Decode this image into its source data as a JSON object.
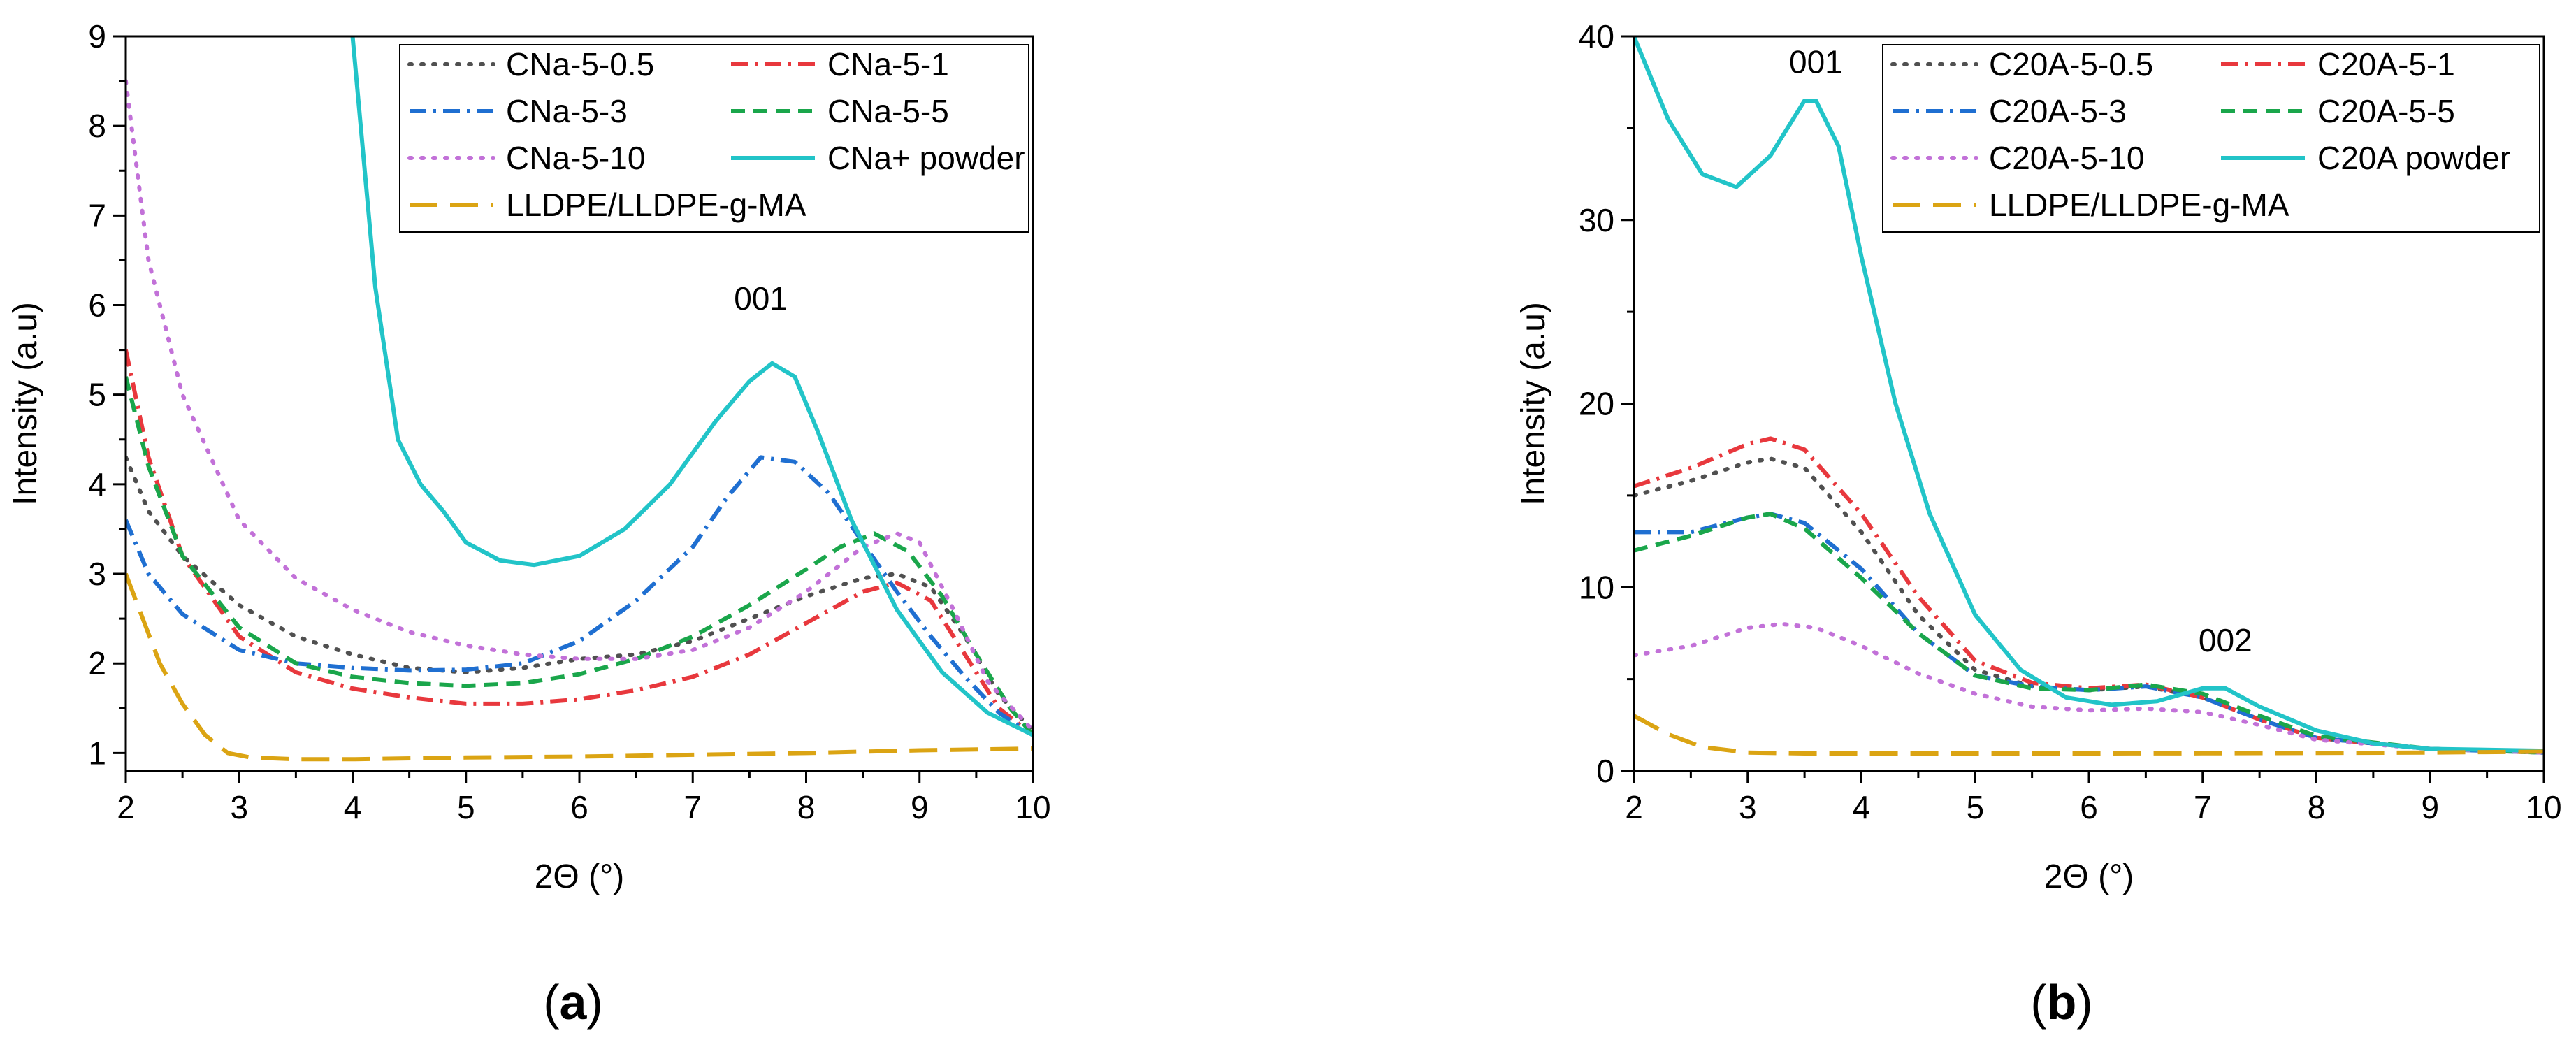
{
  "chart_data": [
    {
      "type": "line",
      "panel_label": "(a)",
      "caption": {
        "open": "(",
        "letter": "a",
        "close": ")"
      },
      "xlabel": "2Θ (°)",
      "ylabel": "Intensity (a.u)",
      "xlim": [
        2,
        10
      ],
      "ylim": [
        0.8,
        9
      ],
      "xticks": [
        2,
        3,
        4,
        5,
        6,
        7,
        8,
        9,
        10
      ],
      "yticks": [
        1,
        2,
        3,
        4,
        5,
        6,
        7,
        8,
        9
      ],
      "legend_position": "top-right",
      "annotations": [
        {
          "text": "001",
          "x": 7.6,
          "y": 5.95
        }
      ],
      "series": [
        {
          "name": "CNa-5-0.5",
          "color": "#505050",
          "style": "dot",
          "x": [
            2,
            2.2,
            2.5,
            3,
            3.5,
            4,
            4.5,
            5,
            5.5,
            6,
            6.5,
            7,
            7.5,
            8,
            8.5,
            8.8,
            9.1,
            9.4,
            9.7,
            10
          ],
          "y": [
            4.3,
            3.7,
            3.2,
            2.65,
            2.3,
            2.1,
            1.95,
            1.9,
            1.95,
            2.05,
            2.1,
            2.25,
            2.5,
            2.75,
            2.95,
            3.0,
            2.85,
            2.3,
            1.65,
            1.25
          ]
        },
        {
          "name": "CNa-5-1",
          "color": "#e8383d",
          "style": "dashdot",
          "x": [
            2,
            2.2,
            2.5,
            3,
            3.5,
            4,
            4.5,
            5,
            5.5,
            6,
            6.5,
            7,
            7.5,
            8,
            8.5,
            8.8,
            9.1,
            9.4,
            9.7,
            10
          ],
          "y": [
            5.5,
            4.3,
            3.2,
            2.3,
            1.9,
            1.72,
            1.62,
            1.55,
            1.55,
            1.6,
            1.7,
            1.85,
            2.1,
            2.45,
            2.8,
            2.9,
            2.7,
            2.1,
            1.5,
            1.2
          ]
        },
        {
          "name": "CNa-5-3",
          "color": "#1f6fd1",
          "style": "dashdot",
          "x": [
            2,
            2.2,
            2.5,
            3,
            3.5,
            4,
            4.5,
            5,
            5.5,
            6,
            6.5,
            7,
            7.3,
            7.6,
            7.9,
            8.2,
            8.5,
            8.8,
            9.1,
            9.4,
            9.7,
            10
          ],
          "y": [
            3.6,
            3.0,
            2.55,
            2.15,
            2.0,
            1.95,
            1.92,
            1.93,
            2.0,
            2.25,
            2.7,
            3.3,
            3.85,
            4.3,
            4.25,
            3.9,
            3.35,
            2.8,
            2.3,
            1.85,
            1.45,
            1.2
          ]
        },
        {
          "name": "CNa-5-5",
          "color": "#1aa64b",
          "style": "dash",
          "x": [
            2,
            2.2,
            2.5,
            3,
            3.5,
            4,
            4.5,
            5,
            5.5,
            6,
            6.5,
            7,
            7.5,
            8,
            8.3,
            8.6,
            8.9,
            9.2,
            9.5,
            9.8,
            10
          ],
          "y": [
            5.2,
            4.2,
            3.2,
            2.4,
            2.0,
            1.85,
            1.78,
            1.75,
            1.78,
            1.88,
            2.05,
            2.3,
            2.65,
            3.05,
            3.3,
            3.45,
            3.25,
            2.75,
            2.1,
            1.5,
            1.2
          ]
        },
        {
          "name": "CNa-5-10",
          "color": "#c271d8",
          "style": "dot",
          "x": [
            2,
            2.2,
            2.5,
            3,
            3.5,
            4,
            4.5,
            5,
            5.5,
            6,
            6.5,
            7,
            7.5,
            8,
            8.5,
            8.8,
            9.0,
            9.3,
            9.6,
            10
          ],
          "y": [
            8.5,
            6.5,
            5.0,
            3.6,
            2.95,
            2.6,
            2.35,
            2.2,
            2.1,
            2.05,
            2.05,
            2.15,
            2.4,
            2.8,
            3.3,
            3.45,
            3.35,
            2.6,
            1.8,
            1.25
          ]
        },
        {
          "name": "CNa+ powder",
          "color": "#22c4c8",
          "style": "solid",
          "x": [
            4.0,
            4.2,
            4.4,
            4.6,
            4.8,
            5.0,
            5.3,
            5.6,
            6.0,
            6.4,
            6.8,
            7.2,
            7.5,
            7.7,
            7.9,
            8.1,
            8.4,
            8.8,
            9.2,
            9.6,
            10.0
          ],
          "y": [
            9.0,
            6.2,
            4.5,
            4.0,
            3.7,
            3.35,
            3.15,
            3.1,
            3.2,
            3.5,
            4.0,
            4.7,
            5.15,
            5.35,
            5.2,
            4.6,
            3.6,
            2.6,
            1.9,
            1.45,
            1.2
          ]
        },
        {
          "name": "LLDPE/LLDPE-g-MA",
          "color": "#dba413",
          "style": "longdash",
          "x": [
            2,
            2.15,
            2.3,
            2.5,
            2.7,
            2.9,
            3.1,
            3.5,
            4,
            5,
            6,
            7,
            8,
            9,
            10
          ],
          "y": [
            3.0,
            2.5,
            2.0,
            1.55,
            1.2,
            1.0,
            0.95,
            0.93,
            0.93,
            0.95,
            0.96,
            0.98,
            1.0,
            1.03,
            1.05
          ]
        }
      ]
    },
    {
      "type": "line",
      "panel_label": "(b)",
      "caption": {
        "open": "(",
        "letter": "b",
        "close": ")"
      },
      "xlabel": "2Θ (°)",
      "ylabel": "Intensity (a.u)",
      "xlim": [
        2,
        10
      ],
      "ylim": [
        0,
        40
      ],
      "xticks": [
        2,
        3,
        4,
        5,
        6,
        7,
        8,
        9,
        10
      ],
      "yticks": [
        0,
        10,
        20,
        30,
        40
      ],
      "legend_position": "top-right",
      "annotations": [
        {
          "text": "001",
          "x": 3.6,
          "y": 38
        },
        {
          "text": "002",
          "x": 7.2,
          "y": 6.5
        }
      ],
      "series": [
        {
          "name": "C20A-5-0.5",
          "color": "#505050",
          "style": "dot",
          "x": [
            2,
            2.5,
            3,
            3.2,
            3.5,
            4,
            4.5,
            5,
            5.5,
            6,
            6.5,
            7,
            7.5,
            8,
            9,
            10
          ],
          "y": [
            15.0,
            15.8,
            16.8,
            17.0,
            16.5,
            13.0,
            8.5,
            5.5,
            4.6,
            4.4,
            4.6,
            4.0,
            2.8,
            1.8,
            1.2,
            1.0
          ]
        },
        {
          "name": "C20A-5-1",
          "color": "#e8383d",
          "style": "dashdot",
          "x": [
            2,
            2.5,
            3,
            3.2,
            3.5,
            4,
            4.5,
            5,
            5.5,
            6,
            6.5,
            7,
            7.5,
            8,
            9,
            10
          ],
          "y": [
            15.5,
            16.5,
            17.8,
            18.1,
            17.5,
            14.0,
            9.5,
            6.0,
            4.8,
            4.5,
            4.7,
            4.0,
            2.8,
            1.8,
            1.2,
            1.0
          ]
        },
        {
          "name": "C20A-5-3",
          "color": "#1f6fd1",
          "style": "dashdot",
          "x": [
            2,
            2.5,
            3,
            3.2,
            3.5,
            4,
            4.5,
            5,
            5.5,
            6,
            6.5,
            7,
            7.5,
            8,
            9,
            10
          ],
          "y": [
            13.0,
            13.0,
            13.8,
            14.0,
            13.5,
            11.0,
            7.5,
            5.2,
            4.6,
            4.4,
            4.6,
            4.0,
            2.8,
            1.8,
            1.2,
            1.0
          ]
        },
        {
          "name": "C20A-5-5",
          "color": "#1aa64b",
          "style": "dash",
          "x": [
            2,
            2.5,
            3,
            3.2,
            3.5,
            4,
            4.5,
            5,
            5.5,
            6,
            6.5,
            7,
            7.5,
            8,
            9,
            10
          ],
          "y": [
            12.0,
            12.8,
            13.8,
            14.0,
            13.2,
            10.5,
            7.5,
            5.2,
            4.5,
            4.4,
            4.7,
            4.2,
            3.0,
            1.9,
            1.2,
            1.0
          ]
        },
        {
          "name": "C20A-5-10",
          "color": "#c271d8",
          "style": "dot",
          "x": [
            2,
            2.5,
            3,
            3.3,
            3.6,
            4,
            4.5,
            5,
            5.5,
            6,
            6.5,
            7,
            7.5,
            8,
            9,
            10
          ],
          "y": [
            6.3,
            6.8,
            7.8,
            8.0,
            7.8,
            6.8,
            5.3,
            4.2,
            3.5,
            3.3,
            3.4,
            3.2,
            2.5,
            1.7,
            1.2,
            1.0
          ]
        },
        {
          "name": "C20A powder",
          "color": "#22c4c8",
          "style": "solid",
          "x": [
            2,
            2.3,
            2.6,
            2.9,
            3.2,
            3.5,
            3.6,
            3.8,
            4.0,
            4.3,
            4.6,
            5.0,
            5.4,
            5.8,
            6.2,
            6.6,
            7.0,
            7.2,
            7.5,
            8.0,
            8.5,
            9.0,
            10.0
          ],
          "y": [
            40,
            35.5,
            32.5,
            31.8,
            33.5,
            36.5,
            36.5,
            34.0,
            28.0,
            20.0,
            14.0,
            8.5,
            5.5,
            4.0,
            3.6,
            3.8,
            4.5,
            4.5,
            3.5,
            2.2,
            1.5,
            1.2,
            1.1
          ]
        },
        {
          "name": "LLDPE/LLDPE-g-MA",
          "color": "#dba413",
          "style": "longdash",
          "x": [
            2,
            2.3,
            2.6,
            3,
            3.5,
            4,
            5,
            6,
            7,
            8,
            9,
            10
          ],
          "y": [
            3.0,
            2.0,
            1.3,
            1.0,
            0.95,
            0.95,
            0.95,
            0.95,
            0.96,
            0.98,
            1.0,
            1.05
          ]
        }
      ]
    }
  ]
}
